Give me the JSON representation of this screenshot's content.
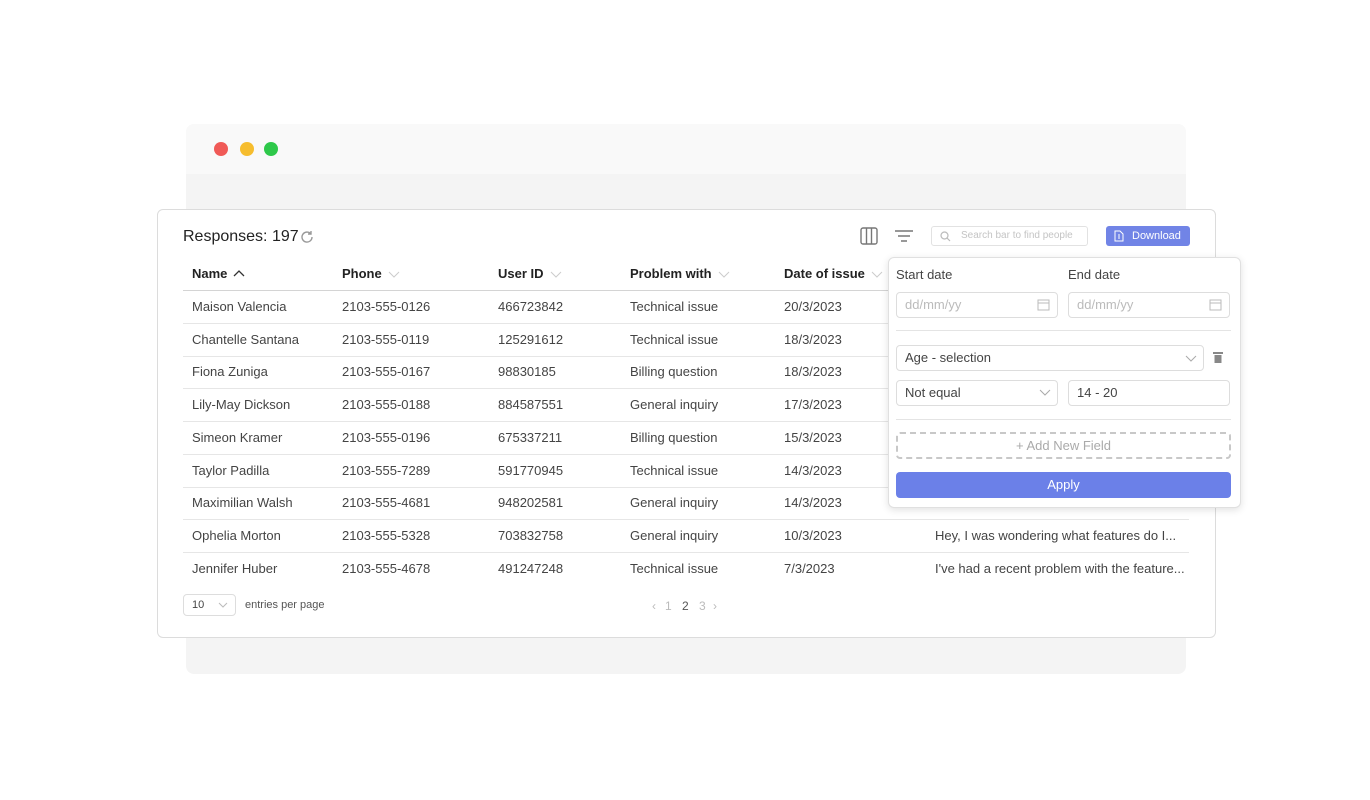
{
  "header": {
    "title": "Responses: 197",
    "search_placeholder": "Search bar to find people",
    "download": "Download"
  },
  "table": {
    "columns": [
      "Name",
      "Phone",
      "User ID",
      "Problem with",
      "Date of issue"
    ],
    "rows": [
      [
        "Maison Valencia",
        "2103-555-0126",
        "466723842",
        "Technical issue",
        "20/3/2023"
      ],
      [
        "Chantelle Santana",
        "2103-555-0119",
        "125291612",
        "Technical issue",
        "18/3/2023"
      ],
      [
        "Fiona Zuniga",
        "2103-555-0167",
        "98830185",
        "Billing question",
        "18/3/2023"
      ],
      [
        "Lily-May Dickson",
        "2103-555-0188",
        "884587551",
        "General inquiry",
        "17/3/2023"
      ],
      [
        "Simeon Kramer",
        "2103-555-0196",
        "675337211",
        "Billing question",
        "15/3/2023"
      ],
      [
        "Taylor Padilla",
        "2103-555-7289",
        "591770945",
        "Technical issue",
        "14/3/2023"
      ],
      [
        "Maximilian Walsh",
        "2103-555-4681",
        "948202581",
        "General inquiry",
        "14/3/2023"
      ],
      [
        "Ophelia Morton",
        "2103-555-5328",
        "703832758",
        "General inquiry",
        "10/3/2023",
        "Hey, I was wondering what features do I..."
      ],
      [
        "Jennifer Huber",
        "2103-555-4678",
        "491247248",
        "Technical issue",
        "7/3/2023",
        "I've had a recent problem with the feature..."
      ]
    ]
  },
  "footer": {
    "page_size": "10",
    "page_size_label": "entries per page",
    "pages": [
      "1",
      "2",
      "3"
    ]
  },
  "filter": {
    "start_label": "Start date",
    "end_label": "End date",
    "date_placeholder": "dd/mm/yy",
    "field": "Age - selection",
    "operator": "Not equal",
    "value": "14 - 20",
    "add_field": "Add New Field",
    "apply": "Apply"
  }
}
